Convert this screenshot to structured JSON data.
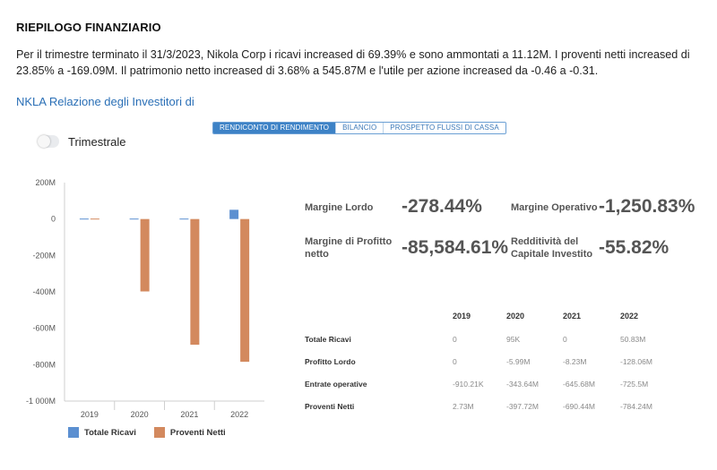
{
  "header": {
    "title": "RIEPILOGO FINANZIARIO",
    "summary": "Per il trimestre terminato il 31/3/2023, Nikola Corp i ricavi increased di 69.39% e sono ammontati a 11.12M. I proventi netti increased di 23.85% a -169.09M. Il patrimonio netto increased di 3.68% a 545.87M e l'utile per azione increased da -0.46 a -0.31.",
    "investor_link": "NKLA Relazione degli Investitori di"
  },
  "tabs": [
    {
      "label": "RENDICONTO DI RENDIMENTO",
      "active": true
    },
    {
      "label": "BILANCIO",
      "active": false
    },
    {
      "label": "PROSPETTO FLUSSI DI CASSA",
      "active": false
    }
  ],
  "toggle": {
    "label": "Trimestrale",
    "on": false
  },
  "chart_data": {
    "type": "bar",
    "categories": [
      "2019",
      "2020",
      "2021",
      "2022"
    ],
    "series": [
      {
        "name": "Totale Ricavi",
        "color": "#5b8fd1",
        "values": [
          0,
          0.095,
          0,
          50.83
        ]
      },
      {
        "name": "Proventi Netti",
        "color": "#d3895e",
        "values": [
          2.73,
          -397.72,
          -690.44,
          -784.24
        ]
      }
    ],
    "ylim": [
      -1000,
      200
    ],
    "ytick_values": [
      200,
      0,
      -200,
      -400,
      -600,
      -800,
      -1000
    ],
    "ytick_labels": [
      "200M",
      "0",
      "-200M",
      "-400M",
      "-600M",
      "-800M",
      "-1 000M"
    ],
    "grid": false,
    "legend": "bottom"
  },
  "ratios": {
    "gross_margin": {
      "label": "Margine Lordo",
      "value": "-278.44%"
    },
    "operating_margin": {
      "label": "Margine Operativo",
      "value": "-1,250.83%"
    },
    "net_margin": {
      "label_line1": "Margine di Profitto",
      "label_line2": "netto",
      "value": "-85,584.61%"
    },
    "roic": {
      "label_line1": "Redditività del",
      "label_line2": "Capitale Investito",
      "value": "-55.82%"
    }
  },
  "table": {
    "years": [
      "2019",
      "2020",
      "2021",
      "2022"
    ],
    "rows": [
      {
        "label": "Totale Ricavi",
        "values": [
          "0",
          "95K",
          "0",
          "50.83M"
        ]
      },
      {
        "label": "Profitto Lordo",
        "values": [
          "0",
          "-5.99M",
          "-8.23M",
          "-128.06M"
        ]
      },
      {
        "label": "Entrate operative",
        "values": [
          "-910.21K",
          "-343.64M",
          "-645.68M",
          "-725.5M"
        ]
      },
      {
        "label": "Proventi Netti",
        "values": [
          "2.73M",
          "-397.72M",
          "-690.44M",
          "-784.24M"
        ]
      }
    ]
  }
}
